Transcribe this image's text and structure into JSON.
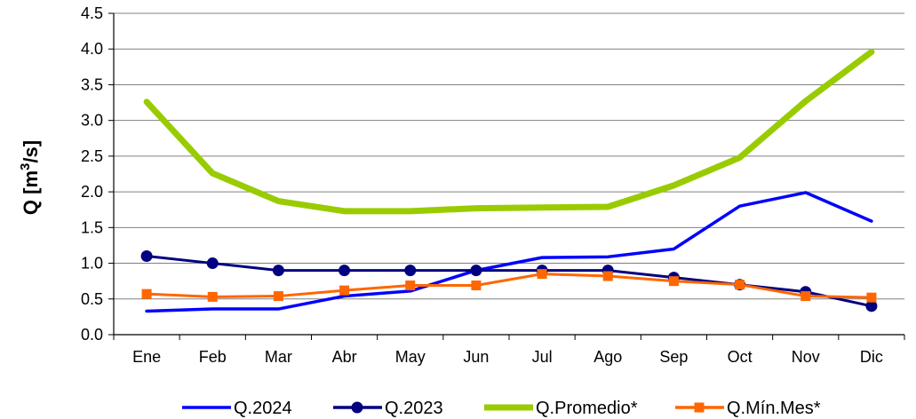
{
  "chart_data": {
    "type": "line",
    "title": "",
    "xlabel": "",
    "ylabel_main": "Q [m",
    "ylabel_sup": "3",
    "ylabel_tail": "/s]",
    "categories": [
      "Ene",
      "Feb",
      "Mar",
      "Abr",
      "May",
      "Jun",
      "Jul",
      "Ago",
      "Sep",
      "Oct",
      "Nov",
      "Dic"
    ],
    "ylim": [
      0,
      4.5
    ],
    "yticks": [
      "0.0",
      "0.5",
      "1.0",
      "1.5",
      "2.0",
      "2.5",
      "3.0",
      "3.5",
      "4.0",
      "4.5"
    ],
    "grid": true,
    "legend_position": "bottom",
    "series": [
      {
        "name": "Q.2024",
        "color": "#0000ff",
        "marker": "none",
        "values": [
          0.33,
          0.36,
          0.36,
          0.54,
          0.61,
          0.9,
          1.08,
          1.09,
          1.2,
          1.8,
          1.99,
          1.59
        ]
      },
      {
        "name": "Q.2023",
        "color": "#000080",
        "marker": "circle",
        "values": [
          1.1,
          1.0,
          0.9,
          0.9,
          0.9,
          0.9,
          0.9,
          0.9,
          0.8,
          0.7,
          0.6,
          0.4
        ]
      },
      {
        "name": "Q.Promedio*",
        "color": "#99cc00",
        "marker": "none",
        "values": [
          3.26,
          2.26,
          1.87,
          1.73,
          1.73,
          1.77,
          1.78,
          1.79,
          2.09,
          2.48,
          3.27,
          3.96
        ]
      },
      {
        "name": "Q.Mín.Mes*",
        "color": "#ff6600",
        "marker": "square",
        "values": [
          0.57,
          0.53,
          0.54,
          0.62,
          0.69,
          0.69,
          0.85,
          0.82,
          0.75,
          0.7,
          0.54,
          0.52
        ]
      }
    ]
  }
}
